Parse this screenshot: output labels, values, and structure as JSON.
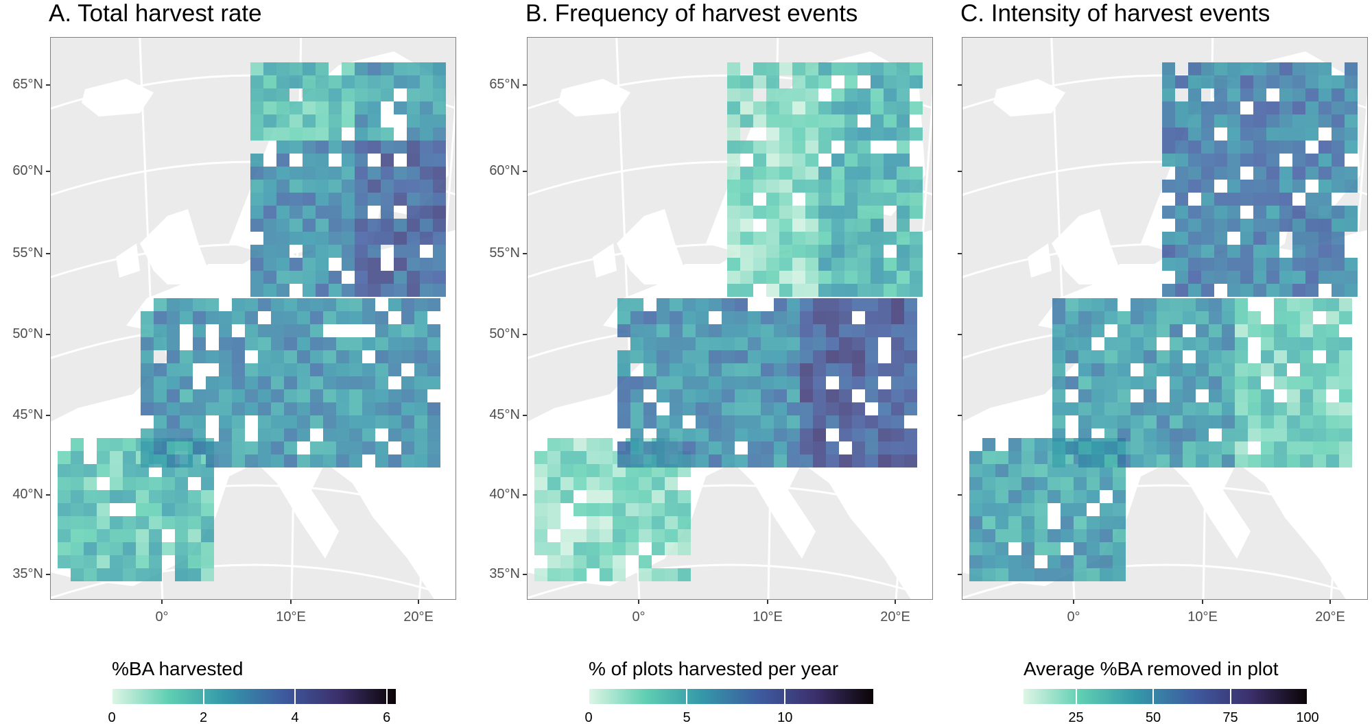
{
  "panels": [
    {
      "title": "A. Total harvest rate",
      "legend_title": "%BA harvested",
      "legend_ticks": [
        "0",
        "2",
        "4",
        "6"
      ],
      "legend_range": [
        0,
        6.2
      ],
      "tick_values": [
        0,
        2,
        4,
        6
      ],
      "pattern": "total"
    },
    {
      "title": "B. Frequency of harvest events",
      "legend_title": "% of plots harvested per year",
      "legend_ticks": [
        "0",
        "5",
        "10"
      ],
      "legend_range": [
        0,
        14.5
      ],
      "tick_values": [
        0,
        5,
        10
      ],
      "pattern": "frequency"
    },
    {
      "title": "C. Intensity of harvest events",
      "legend_title": "Average %BA removed in plot",
      "legend_ticks": [
        "25",
        "50",
        "75",
        "100"
      ],
      "legend_range": [
        8,
        100
      ],
      "tick_values": [
        25,
        50,
        75,
        100
      ],
      "pattern": "intensity"
    }
  ],
  "latitude_labels": [
    "65°N",
    "60°N",
    "55°N",
    "50°N",
    "45°N",
    "40°N",
    "35°N"
  ],
  "longitude_labels": [
    "0°",
    "10°E",
    "20°E"
  ],
  "colors": {
    "background": "#ebebeb",
    "land": "#ffffff",
    "scale": [
      "#def5e5",
      "#5fcfb2",
      "#3497a9",
      "#3e5ba0",
      "#3b2f6b",
      "#0b0405"
    ]
  }
}
